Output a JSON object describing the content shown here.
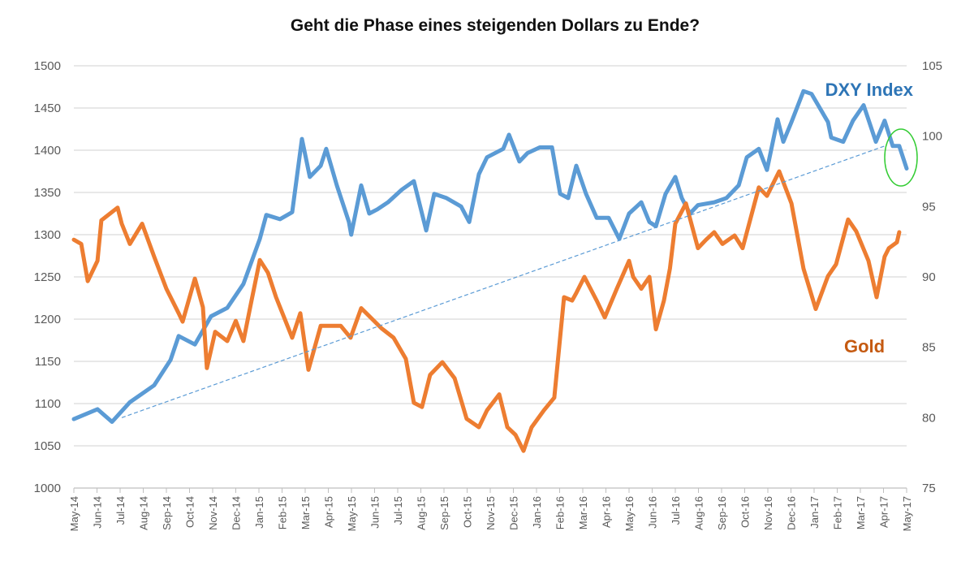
{
  "chart_data": {
    "type": "line",
    "title": "Geht die Phase eines steigenden Dollars zu Ende?",
    "xlabel": "",
    "ylabel_left": "",
    "ylabel_right": "",
    "grid": true,
    "x_tick_labels": [
      "May-14",
      "Jun-14",
      "Jul-14",
      "Aug-14",
      "Sep-14",
      "Oct-14",
      "Nov-14",
      "Dec-14",
      "Jan-15",
      "Feb-15",
      "Mar-15",
      "Apr-15",
      "May-15",
      "Jun-15",
      "Jul-15",
      "Aug-15",
      "Sep-15",
      "Oct-15",
      "Nov-15",
      "Dec-15",
      "Jan-16",
      "Feb-16",
      "Mar-16",
      "Apr-16",
      "May-16",
      "Jun-16",
      "Jul-16",
      "Aug-16",
      "Sep-16",
      "Oct-16",
      "Nov-16",
      "Dec-16",
      "Jan-17",
      "Feb-17",
      "Mar-17",
      "Apr-17",
      "May-17"
    ],
    "x_range_months": [
      0,
      36
    ],
    "y_left": {
      "range": [
        1000,
        1500
      ],
      "ticks": [
        1000,
        1050,
        1100,
        1150,
        1200,
        1250,
        1300,
        1350,
        1400,
        1450,
        1500
      ]
    },
    "y_right": {
      "range": [
        75,
        105
      ],
      "ticks": [
        75,
        80,
        85,
        90,
        95,
        100,
        105
      ]
    },
    "series": [
      {
        "name": "DXY Index",
        "axis": "right",
        "color": "#5b9bd5",
        "label_color": "#2e75b6",
        "x_months": [
          0,
          1.02,
          1.65,
          2.42,
          3.47,
          4.18,
          4.53,
          5.23,
          5.93,
          6.63,
          7.33,
          8.04,
          8.32,
          8.91,
          9.44,
          9.86,
          10.2,
          10.67,
          10.91,
          11.37,
          11.89,
          11.99,
          12.42,
          12.77,
          13.12,
          13.58,
          14.18,
          14.7,
          15.23,
          15.58,
          16.11,
          16.74,
          17.09,
          17.51,
          17.86,
          18.56,
          18.81,
          19.26,
          19.61,
          20.14,
          20.67,
          21.02,
          21.37,
          21.72,
          22.14,
          22.6,
          23.12,
          23.58,
          24.0,
          24.53,
          24.88,
          25.16,
          25.58,
          26.0,
          26.28,
          26.63,
          26.98,
          27.68,
          28.21,
          28.74,
          29.09,
          29.61,
          29.96,
          30.42,
          30.67,
          31.02,
          31.54,
          31.89,
          32.6,
          32.74,
          33.26,
          33.68,
          34.14,
          34.67,
          35.05,
          35.4,
          35.68,
          36.0
        ],
        "values": [
          79.9,
          80.6,
          79.7,
          81.1,
          82.3,
          84.1,
          85.8,
          85.2,
          87.2,
          87.8,
          89.5,
          92.7,
          94.4,
          94.1,
          94.6,
          99.8,
          97.1,
          97.9,
          99.1,
          96.5,
          93.9,
          93.0,
          96.5,
          94.5,
          94.8,
          95.3,
          96.2,
          96.8,
          93.3,
          95.9,
          95.6,
          95.0,
          93.9,
          97.3,
          98.5,
          99.1,
          100.1,
          98.2,
          98.8,
          99.2,
          99.2,
          95.9,
          95.6,
          97.9,
          95.9,
          94.2,
          94.2,
          92.7,
          94.5,
          95.3,
          93.9,
          93.6,
          95.9,
          97.1,
          95.6,
          94.5,
          95.1,
          95.3,
          95.6,
          96.5,
          98.5,
          99.1,
          97.6,
          101.2,
          99.6,
          101.0,
          103.2,
          103.0,
          101.0,
          99.9,
          99.6,
          101.1,
          102.2,
          99.6,
          101.1,
          99.3,
          99.3,
          97.7
        ]
      },
      {
        "name": "Gold",
        "axis": "left",
        "color": "#ed7d31",
        "label_color": "#c55a11",
        "x_months": [
          0,
          0.32,
          0.6,
          1.02,
          1.19,
          1.89,
          2.07,
          2.42,
          2.95,
          3.47,
          4.0,
          4.53,
          4.7,
          5.23,
          5.58,
          5.75,
          6.11,
          6.63,
          7.0,
          7.33,
          7.68,
          8.04,
          8.39,
          8.74,
          9.44,
          9.79,
          10.14,
          10.67,
          11.54,
          11.96,
          12.42,
          13.3,
          13.82,
          14.35,
          14.7,
          15.05,
          15.4,
          15.93,
          16.46,
          16.98,
          17.51,
          17.86,
          18.39,
          18.74,
          19.09,
          19.44,
          19.79,
          20.32,
          20.77,
          21.19,
          21.54,
          21.72,
          22.07,
          22.6,
          22.95,
          23.47,
          24.0,
          24.18,
          24.53,
          24.88,
          25.16,
          25.51,
          25.77,
          26.0,
          26.46,
          26.98,
          27.33,
          27.68,
          28.04,
          28.56,
          28.91,
          29.61,
          29.96,
          30.49,
          31.02,
          31.54,
          32.07,
          32.6,
          32.95,
          33.47,
          33.82,
          34.35,
          34.7,
          35.05,
          35.23,
          35.58,
          35.68
        ],
        "values": [
          1294,
          1289,
          1245,
          1269,
          1317,
          1332,
          1313,
          1289,
          1313,
          1274,
          1236,
          1207,
          1197,
          1248,
          1214,
          1142,
          1185,
          1174,
          1198,
          1174,
          1222,
          1270,
          1255,
          1226,
          1178,
          1207,
          1140,
          1192,
          1192,
          1178,
          1213,
          1189,
          1178,
          1153,
          1101,
          1096,
          1134,
          1149,
          1130,
          1082,
          1072,
          1092,
          1111,
          1072,
          1063,
          1044,
          1072,
          1092,
          1107,
          1226,
          1222,
          1231,
          1250,
          1222,
          1202,
          1236,
          1269,
          1250,
          1236,
          1250,
          1188,
          1222,
          1260,
          1313,
          1337,
          1284,
          1294,
          1303,
          1289,
          1299,
          1284,
          1356,
          1346,
          1375,
          1337,
          1260,
          1212,
          1251,
          1265,
          1318,
          1304,
          1269,
          1226,
          1274,
          1284,
          1291,
          1303
        ]
      }
    ],
    "trendline": {
      "series": "DXY Index",
      "style": "dashed",
      "color": "#5b9bd5",
      "from": {
        "x_month": 2.07,
        "value": 80.0
      },
      "to": {
        "x_month": 35.05,
        "value": 99.3
      }
    },
    "annotations": [
      {
        "type": "text",
        "text": "DXY Index",
        "near": "top-right",
        "color": "#2e75b6"
      },
      {
        "type": "text",
        "text": "Gold",
        "near": "lower-right",
        "color": "#c55a11"
      },
      {
        "type": "ellipse",
        "around": "DXY Index end (Apr-17 to May-17)",
        "color": "#33cc33"
      }
    ]
  }
}
